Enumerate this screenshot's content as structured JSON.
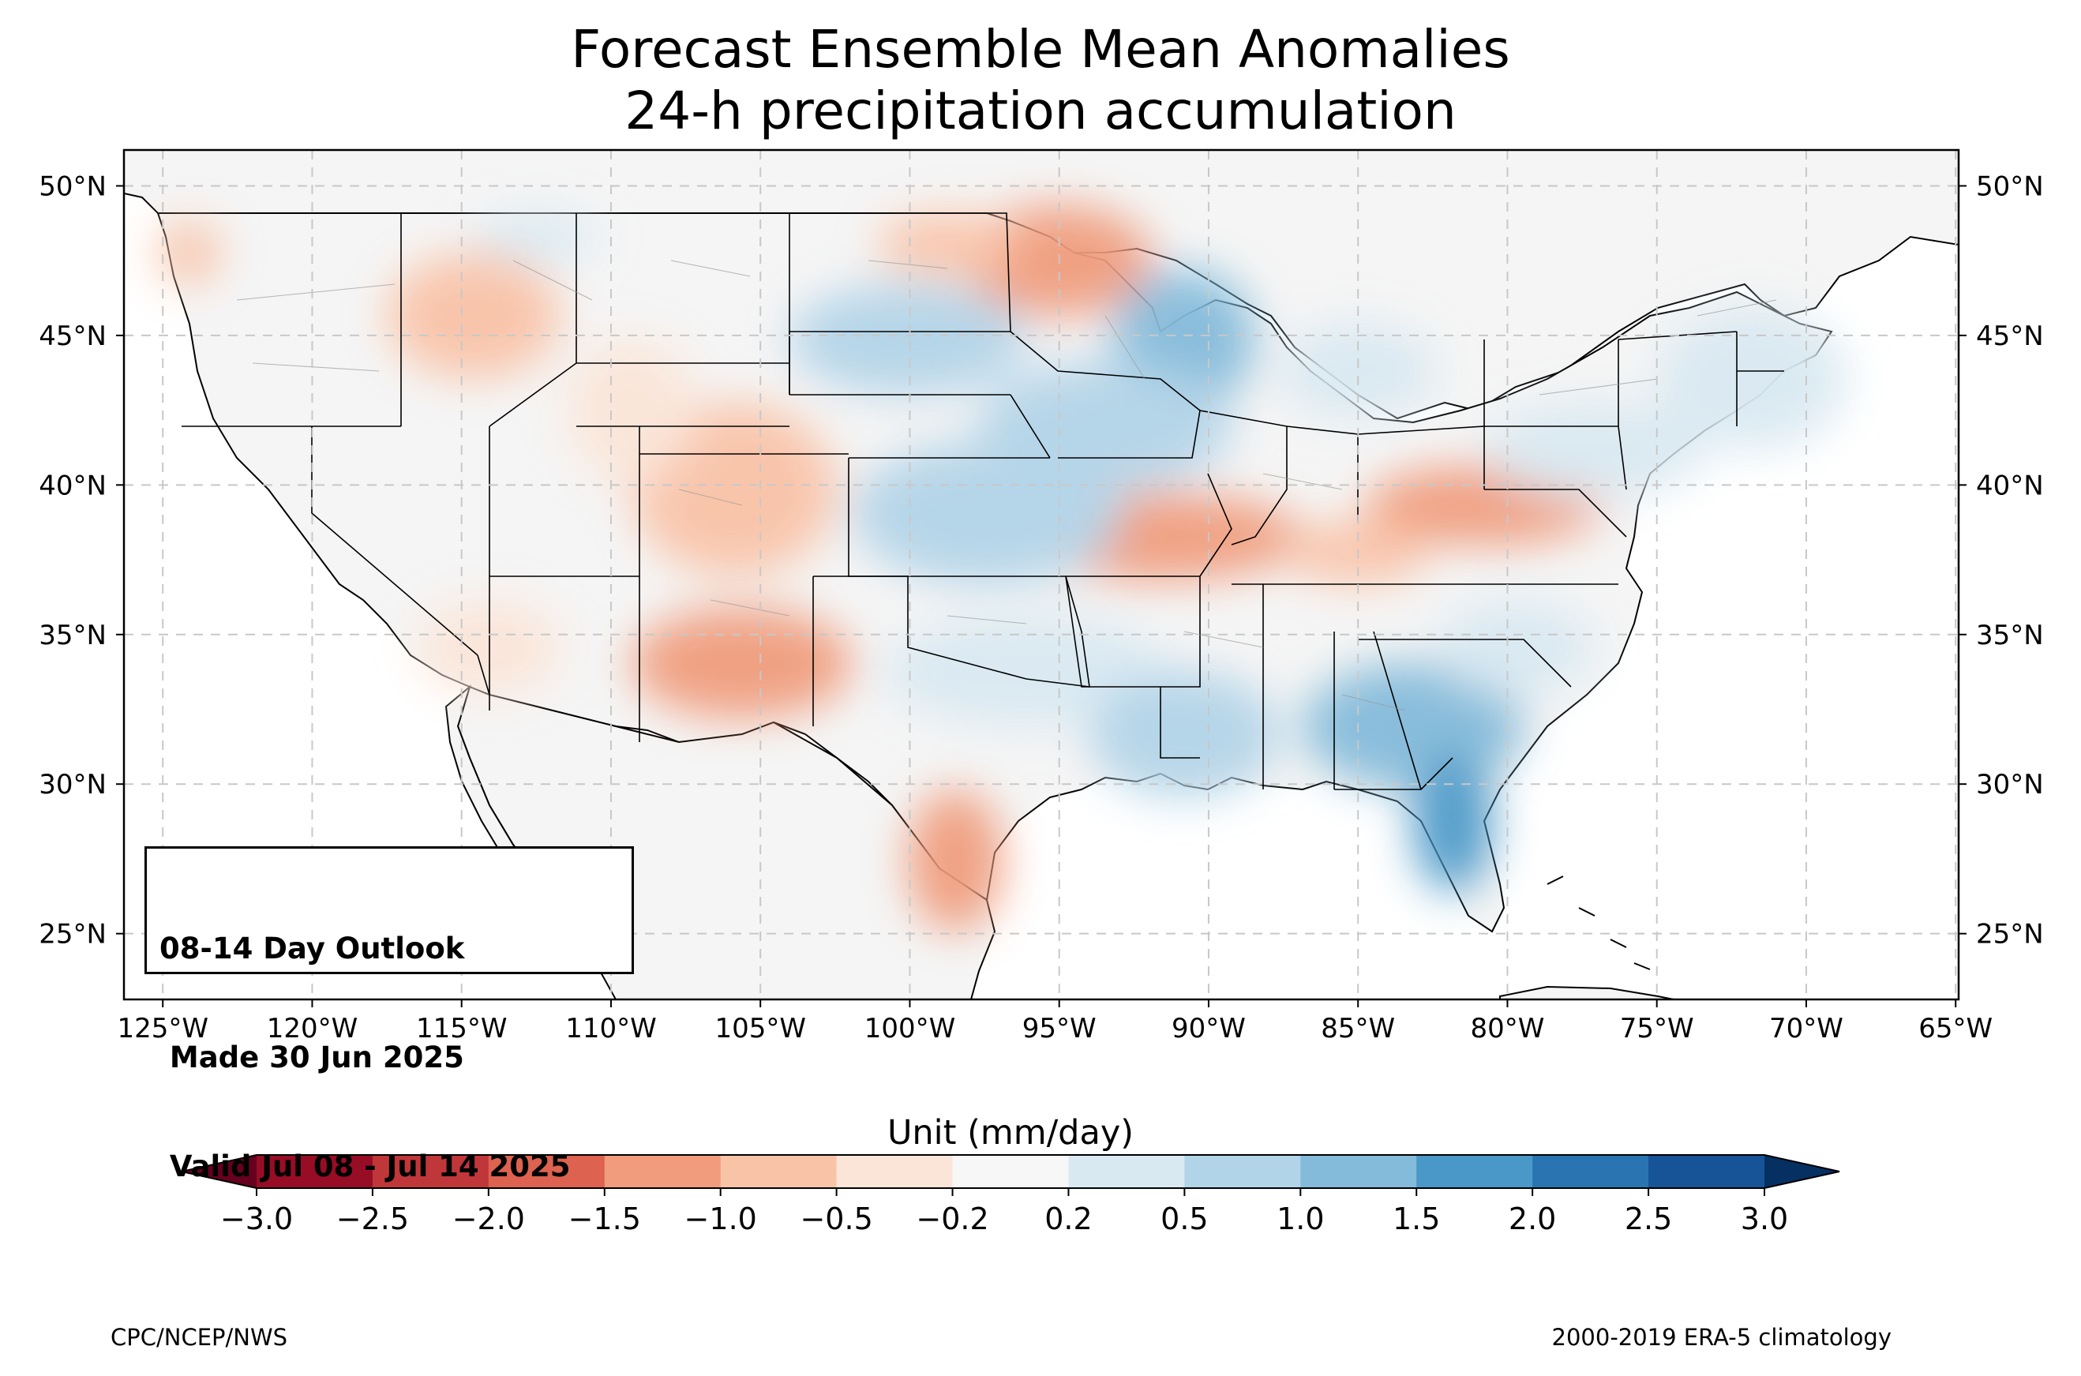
{
  "title": {
    "line1": "Forecast Ensemble Mean Anomalies",
    "line2": "24-h precipitation accumulation"
  },
  "map": {
    "lon_range": [
      -126.3,
      -64.9
    ],
    "lat_range": [
      22.8,
      51.2
    ],
    "lon_ticks": [
      -125,
      -120,
      -115,
      -110,
      -105,
      -100,
      -95,
      -90,
      -85,
      -80,
      -75,
      -70,
      -65
    ],
    "lon_tick_labels": [
      "125°W",
      "120°W",
      "115°W",
      "110°W",
      "105°W",
      "100°W",
      "95°W",
      "90°W",
      "85°W",
      "80°W",
      "75°W",
      "70°W",
      "65°W"
    ],
    "lat_ticks": [
      25,
      30,
      35,
      40,
      45,
      50
    ],
    "lat_tick_labels": [
      "25°N",
      "30°N",
      "35°N",
      "40°N",
      "45°N",
      "50°N"
    ],
    "gridlines": true,
    "ocean_color": "#ffffff",
    "land_color": "#f5f5f5",
    "anomaly_regions": [
      {
        "region": "northern-plains-dry",
        "lon": -95.5,
        "lat": 47.6,
        "value": -1.2
      },
      {
        "region": "mississippi-valley-dry",
        "lon": -91.5,
        "lat": 37.6,
        "value": -0.8
      },
      {
        "region": "ohio-valley-dry",
        "lon": -82.0,
        "lat": 38.5,
        "value": -0.7
      },
      {
        "region": "colorado-dry",
        "lon": -105.5,
        "lat": 39.6,
        "value": -0.5
      },
      {
        "region": "new-mexico-dry",
        "lon": -105.0,
        "lat": 33.5,
        "value": -0.7
      },
      {
        "region": "south-texas-dry",
        "lon": -98.0,
        "lat": 27.5,
        "value": -0.8
      },
      {
        "region": "pacific-northwest-dry",
        "lon": -115.0,
        "lat": 45.5,
        "value": -0.4
      },
      {
        "region": "southwest-dry",
        "lon": -113.5,
        "lat": 33.8,
        "value": -0.3
      },
      {
        "region": "wisconsin-wet",
        "lon": -91.0,
        "lat": 45.0,
        "value": 1.2
      },
      {
        "region": "iowa-nebraska-wet",
        "lon": -96.0,
        "lat": 42.0,
        "value": 0.9
      },
      {
        "region": "kansas-wet",
        "lon": -97.5,
        "lat": 38.5,
        "value": 1.0
      },
      {
        "region": "southern-plains-wet",
        "lon": -93.5,
        "lat": 33.0,
        "value": 0.7
      },
      {
        "region": "southeast-wet",
        "lon": -83.5,
        "lat": 31.0,
        "value": 1.3
      },
      {
        "region": "florida-wet",
        "lon": -81.8,
        "lat": 28.0,
        "value": 1.6
      },
      {
        "region": "northeast-wet",
        "lon": -74.5,
        "lat": 42.5,
        "value": 0.6
      },
      {
        "region": "south-dakota-wet",
        "lon": -100.5,
        "lat": 44.5,
        "value": 0.8
      },
      {
        "region": "michigan-wet",
        "lon": -85.0,
        "lat": 44.0,
        "value": 0.5
      }
    ]
  },
  "outlook": {
    "line1": "08-14 Day Outlook",
    "line2": " Made 30 Jun 2025",
    "line3": " Valid Jul 08 - Jul 14 2025"
  },
  "colorbar": {
    "label": "Unit (mm/day)",
    "bounds": [
      -3.0,
      -2.5,
      -2.0,
      -1.5,
      -1.0,
      -0.5,
      -0.2,
      0.2,
      0.5,
      1.0,
      1.5,
      2.0,
      2.5,
      3.0
    ],
    "tick_labels": [
      "−3.0",
      "−2.5",
      "−2.0",
      "−1.5",
      "−1.0",
      "−0.5",
      "−0.2",
      "0.2",
      "0.5",
      "1.0",
      "1.5",
      "2.0",
      "2.5",
      "3.0"
    ],
    "colors": [
      "#970d25",
      "#c0373a",
      "#dd6250",
      "#f09c7d",
      "#f9c3a8",
      "#fbe5d8",
      "#f7f7f7",
      "#d9e9f2",
      "#b2d4e8",
      "#84bbda",
      "#4a98c8",
      "#2a74b2",
      "#175397"
    ],
    "under_color": "#67001f",
    "over_color": "#053061"
  },
  "footer": {
    "left": "CPC/NCEP/NWS",
    "right": "2000-2019 ERA-5 climatology"
  }
}
